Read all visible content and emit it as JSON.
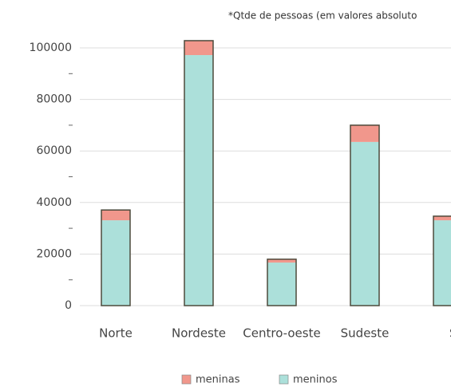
{
  "chart_data": {
    "type": "stacked-bar",
    "title": "*Qtde de pessoas (em valores absoluto",
    "categories": [
      "Norte",
      "Nordeste",
      "Centro-oeste",
      "Sudeste",
      "Su"
    ],
    "series": [
      {
        "name": "meninas",
        "color": "#f1978c",
        "values": [
          4000,
          5600,
          1300,
          6500,
          1600
        ]
      },
      {
        "name": "meninos",
        "color": "#ace0da",
        "values": [
          33100,
          97200,
          16700,
          63500,
          33100
        ]
      }
    ],
    "ylim": [
      0,
      100000
    ],
    "yticks": [
      0,
      20000,
      40000,
      60000,
      80000,
      100000
    ],
    "minor_yticks": [
      10000,
      30000,
      50000,
      70000,
      90000
    ],
    "grid": true,
    "legend": "bottom"
  }
}
